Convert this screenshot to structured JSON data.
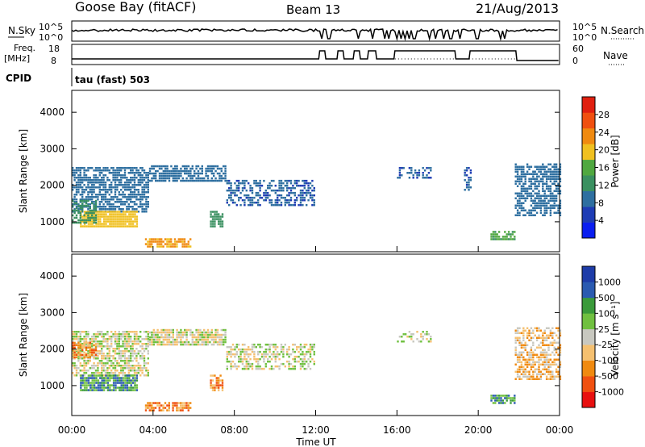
{
  "header": {
    "station": "Goose Bay (fitACF)",
    "beam": "Beam 13",
    "date": "21/Aug/2013"
  },
  "strip": {
    "nsky_label": "N.Sky",
    "nsky_ticks": [
      "10^5",
      "10^0"
    ],
    "nsearch_label": "N.Search",
    "nsearch_ticks": [
      "10^5",
      "10^0"
    ],
    "freq_label_1": "Freq.",
    "freq_label_2": "[MHz]",
    "freq_ticks": [
      "18",
      "8"
    ],
    "nave_label": "Nave",
    "nave_ticks": [
      "60",
      "0"
    ],
    "cpid_label": "CPID",
    "cpid_text": "tau (fast) 503"
  },
  "colors": {
    "power": [
      "#0a1ef0",
      "#1e3cb4",
      "#2e6fa0",
      "#3a9060",
      "#50a840",
      "#f0c020",
      "#f08a10",
      "#f05010",
      "#e02010"
    ],
    "velocity": [
      "#e81010",
      "#f05010",
      "#f08a10",
      "#f5c070",
      "#c8c8c0",
      "#70c040",
      "#3a9a3a",
      "#2a5ab0",
      "#1e3ca8"
    ],
    "ground": "#b4b4b4"
  },
  "chart_data": [
    {
      "type": "heatmap",
      "panel": "power",
      "xlabel": "",
      "ylabel": "Slant Range [km]",
      "x_range_hours": [
        0,
        24
      ],
      "ylim": [
        180,
        4600
      ],
      "y_ticks": [
        1000,
        2000,
        3000,
        4000
      ],
      "y_tick_labels": [
        "1000",
        "2000",
        "3000",
        "4000"
      ],
      "colorbar": {
        "label": "Power [dB]",
        "range": [
          0,
          32
        ],
        "ticks": [
          4,
          8,
          12,
          16,
          20,
          24,
          28
        ],
        "tick_labels": [
          "4",
          "8",
          "12",
          "16",
          "20",
          "24",
          "28"
        ]
      },
      "regions": [
        {
          "t": [
            0.0,
            3.8
          ],
          "r": [
            1300,
            2500
          ],
          "level": 8,
          "density": 0.7
        },
        {
          "t": [
            0.4,
            3.2
          ],
          "r": [
            900,
            1300
          ],
          "level": 20,
          "density": 0.9
        },
        {
          "t": [
            0.0,
            1.2
          ],
          "r": [
            1000,
            1600
          ],
          "level": 12,
          "density": 0.6
        },
        {
          "t": [
            3.8,
            7.6
          ],
          "r": [
            2100,
            2550
          ],
          "level": 8,
          "density": 0.75
        },
        {
          "t": [
            7.6,
            11.9
          ],
          "r": [
            1450,
            2150
          ],
          "level": 6,
          "density": 0.55
        },
        {
          "t": [
            6.8,
            7.4
          ],
          "r": [
            900,
            1300
          ],
          "level": 12,
          "density": 0.7
        },
        {
          "t": [
            3.6,
            5.8
          ],
          "r": [
            350,
            550
          ],
          "level": 22,
          "density": 0.8
        },
        {
          "t": [
            16.0,
            17.7
          ],
          "r": [
            2200,
            2500
          ],
          "level": 6,
          "density": 0.45
        },
        {
          "t": [
            19.3,
            19.6
          ],
          "r": [
            1900,
            2500
          ],
          "level": 6,
          "density": 0.6
        },
        {
          "t": [
            20.6,
            21.8
          ],
          "r": [
            500,
            750
          ],
          "level": 14,
          "density": 0.8
        },
        {
          "t": [
            21.8,
            24.0
          ],
          "r": [
            1200,
            2600
          ],
          "level": 8,
          "density": 0.65
        }
      ]
    },
    {
      "type": "heatmap",
      "panel": "velocity",
      "xlabel": "Time UT",
      "ylabel": "Slant Range [km]",
      "x_range_hours": [
        0,
        24
      ],
      "x_ticks": [
        0,
        4,
        8,
        12,
        16,
        20,
        24
      ],
      "x_tick_labels": [
        "00:00",
        "04:00",
        "08:00",
        "12:00",
        "16:00",
        "20:00",
        "00:00"
      ],
      "ylim": [
        180,
        4600
      ],
      "y_ticks": [
        1000,
        2000,
        3000,
        4000
      ],
      "y_tick_labels": [
        "1000",
        "2000",
        "3000",
        "4000"
      ],
      "colorbar": {
        "label": "Velocity [m s⁻¹]",
        "tick_labels": [
          "1000",
          "500",
          "100",
          "25",
          "-25",
          "-100",
          "-500",
          "-1000"
        ]
      },
      "regions": [
        {
          "t": [
            0.0,
            3.8
          ],
          "r": [
            1300,
            2500
          ],
          "level": 4,
          "density": 0.7
        },
        {
          "t": [
            0.4,
            3.2
          ],
          "r": [
            900,
            1300
          ],
          "level": 6,
          "density": 0.85
        },
        {
          "t": [
            0.0,
            1.2
          ],
          "r": [
            1800,
            2200
          ],
          "level": 2,
          "density": 0.7
        },
        {
          "t": [
            3.8,
            7.6
          ],
          "r": [
            2100,
            2550
          ],
          "level": 4,
          "density": 0.75
        },
        {
          "t": [
            7.6,
            11.9
          ],
          "r": [
            1450,
            2150
          ],
          "level": 4,
          "density": 0.55
        },
        {
          "t": [
            6.8,
            7.4
          ],
          "r": [
            900,
            1300
          ],
          "level": 2,
          "density": 0.7
        },
        {
          "t": [
            3.6,
            5.8
          ],
          "r": [
            350,
            550
          ],
          "level": 2,
          "density": 0.75
        },
        {
          "t": [
            16.0,
            17.7
          ],
          "r": [
            2200,
            2500
          ],
          "level": 4,
          "density": 0.45
        },
        {
          "t": [
            20.6,
            21.8
          ],
          "r": [
            500,
            750
          ],
          "level": 6,
          "density": 0.8
        },
        {
          "t": [
            21.8,
            24.0
          ],
          "r": [
            1200,
            2600
          ],
          "level": 3,
          "density": 0.6
        }
      ]
    }
  ]
}
